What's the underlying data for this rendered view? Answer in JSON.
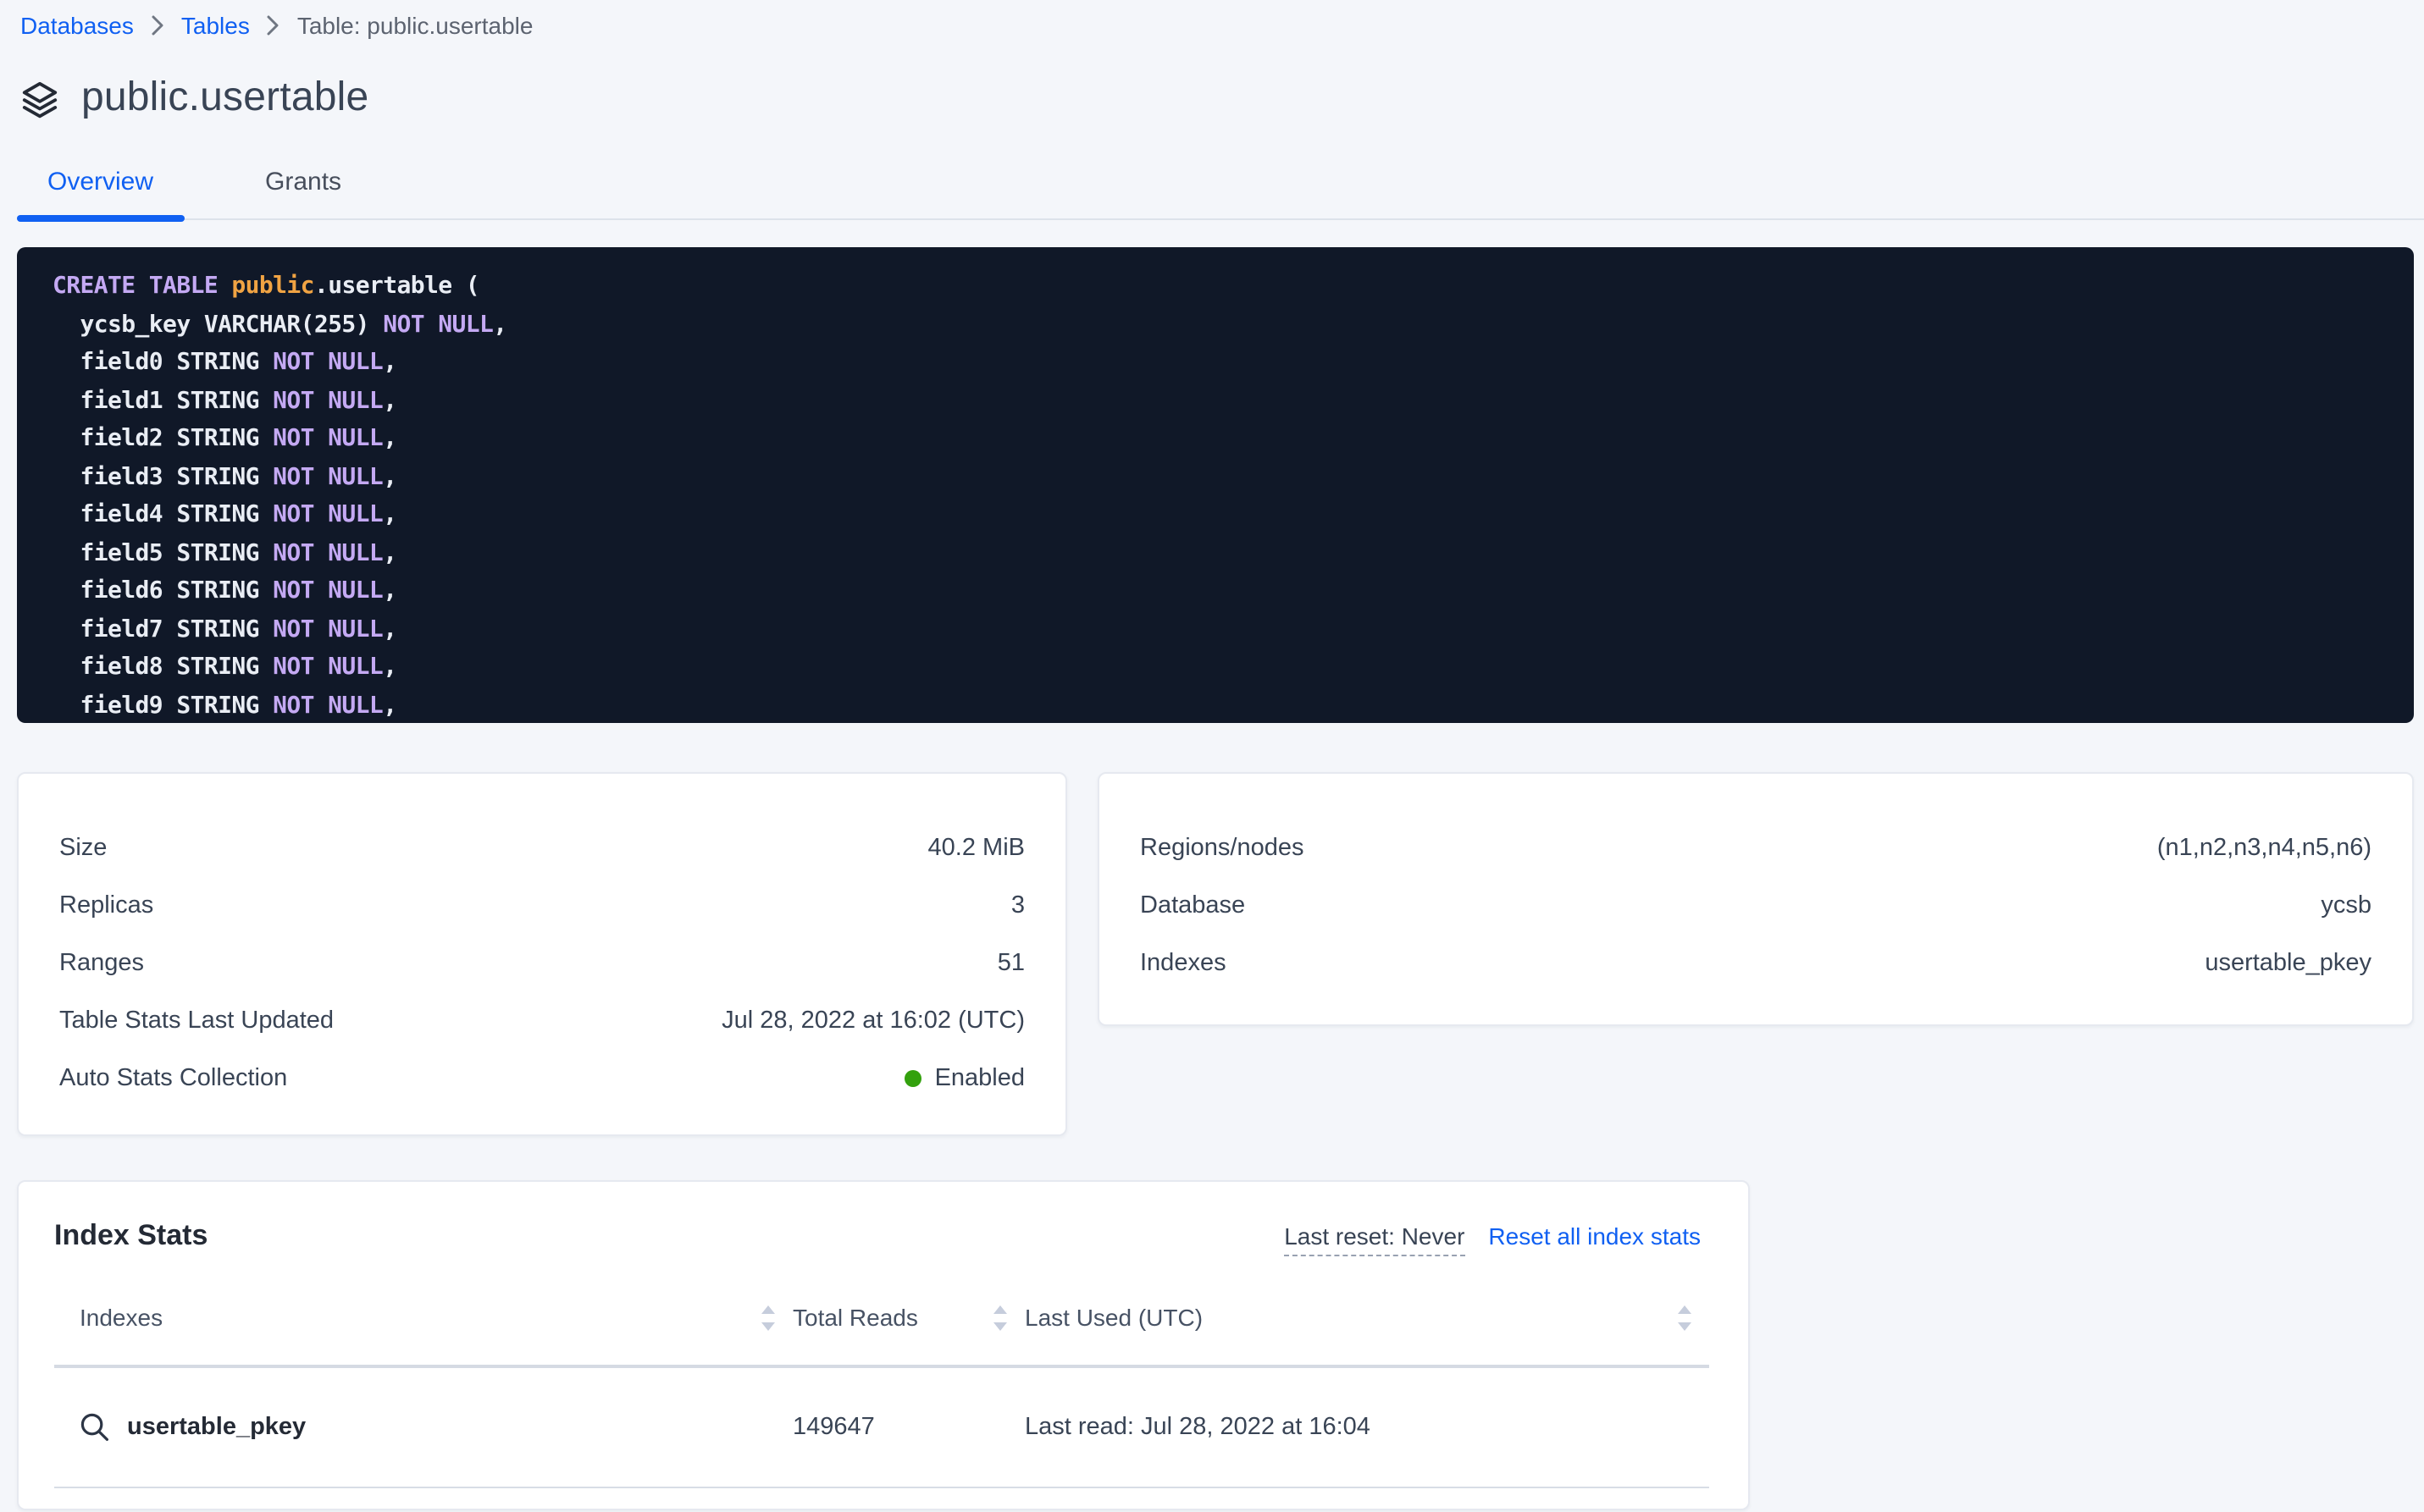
{
  "colors": {
    "accent_blue": "#1060f2",
    "status_green": "#33a10d",
    "code_background": "#101828",
    "code_keyword": "#c4a9f3",
    "code_entity": "#f0a343",
    "code_plain": "#e9edf4",
    "page_background": "#f4f6fa"
  },
  "breadcrumb": {
    "items": [
      {
        "label": "Databases",
        "link": true
      },
      {
        "label": "Tables",
        "link": true
      },
      {
        "label": "Table: public.usertable",
        "link": false
      }
    ]
  },
  "header": {
    "icon": "stack-icon",
    "title": "public.usertable"
  },
  "tabs": [
    {
      "label": "Overview",
      "active": true
    },
    {
      "label": "Grants",
      "active": false
    }
  ],
  "sql": {
    "lines": [
      [
        {
          "text": "CREATE TABLE ",
          "type": "keyword"
        },
        {
          "text": "public",
          "type": "entity"
        },
        {
          "text": ".usertable (",
          "type": "plain"
        }
      ],
      [
        {
          "text": "  ycsb_key VARCHAR(255) ",
          "type": "plain"
        },
        {
          "text": "NOT NULL",
          "type": "keyword"
        },
        {
          "text": ",",
          "type": "plain"
        }
      ],
      [
        {
          "text": "  field0 STRING ",
          "type": "plain"
        },
        {
          "text": "NOT NULL",
          "type": "keyword"
        },
        {
          "text": ",",
          "type": "plain"
        }
      ],
      [
        {
          "text": "  field1 STRING ",
          "type": "plain"
        },
        {
          "text": "NOT NULL",
          "type": "keyword"
        },
        {
          "text": ",",
          "type": "plain"
        }
      ],
      [
        {
          "text": "  field2 STRING ",
          "type": "plain"
        },
        {
          "text": "NOT NULL",
          "type": "keyword"
        },
        {
          "text": ",",
          "type": "plain"
        }
      ],
      [
        {
          "text": "  field3 STRING ",
          "type": "plain"
        },
        {
          "text": "NOT NULL",
          "type": "keyword"
        },
        {
          "text": ",",
          "type": "plain"
        }
      ],
      [
        {
          "text": "  field4 STRING ",
          "type": "plain"
        },
        {
          "text": "NOT NULL",
          "type": "keyword"
        },
        {
          "text": ",",
          "type": "plain"
        }
      ],
      [
        {
          "text": "  field5 STRING ",
          "type": "plain"
        },
        {
          "text": "NOT NULL",
          "type": "keyword"
        },
        {
          "text": ",",
          "type": "plain"
        }
      ],
      [
        {
          "text": "  field6 STRING ",
          "type": "plain"
        },
        {
          "text": "NOT NULL",
          "type": "keyword"
        },
        {
          "text": ",",
          "type": "plain"
        }
      ],
      [
        {
          "text": "  field7 STRING ",
          "type": "plain"
        },
        {
          "text": "NOT NULL",
          "type": "keyword"
        },
        {
          "text": ",",
          "type": "plain"
        }
      ],
      [
        {
          "text": "  field8 STRING ",
          "type": "plain"
        },
        {
          "text": "NOT NULL",
          "type": "keyword"
        },
        {
          "text": ",",
          "type": "plain"
        }
      ],
      [
        {
          "text": "  field9 STRING ",
          "type": "plain"
        },
        {
          "text": "NOT NULL",
          "type": "keyword"
        },
        {
          "text": ",",
          "type": "plain"
        }
      ]
    ]
  },
  "details_left": {
    "rows": [
      {
        "label": "Size",
        "value": "40.2 MiB"
      },
      {
        "label": "Replicas",
        "value": "3"
      },
      {
        "label": "Ranges",
        "value": "51"
      },
      {
        "label": "Table Stats Last Updated",
        "value": "Jul 28, 2022 at 16:02 (UTC)"
      },
      {
        "label": "Auto Stats Collection",
        "value": "Enabled",
        "status_dot": "#33a10d"
      }
    ]
  },
  "details_right": {
    "rows": [
      {
        "label": "Regions/nodes",
        "value": "(n1,n2,n3,n4,n5,n6)"
      },
      {
        "label": "Database",
        "value": "ycsb"
      },
      {
        "label": "Indexes",
        "value": "usertable_pkey"
      }
    ]
  },
  "index_stats": {
    "title": "Index Stats",
    "last_reset_label": "Last reset: Never",
    "reset_link_label": "Reset all index stats",
    "columns": [
      {
        "label": "Indexes",
        "sortable": true
      },
      {
        "label": "Total Reads",
        "sortable": true
      },
      {
        "label": "Last Used (UTC)",
        "sortable": true
      }
    ],
    "rows": [
      {
        "icon": "magnifier-icon",
        "name": "usertable_pkey",
        "total_reads": "149647",
        "last_used": "Last read: Jul 28, 2022 at 16:04"
      }
    ]
  }
}
